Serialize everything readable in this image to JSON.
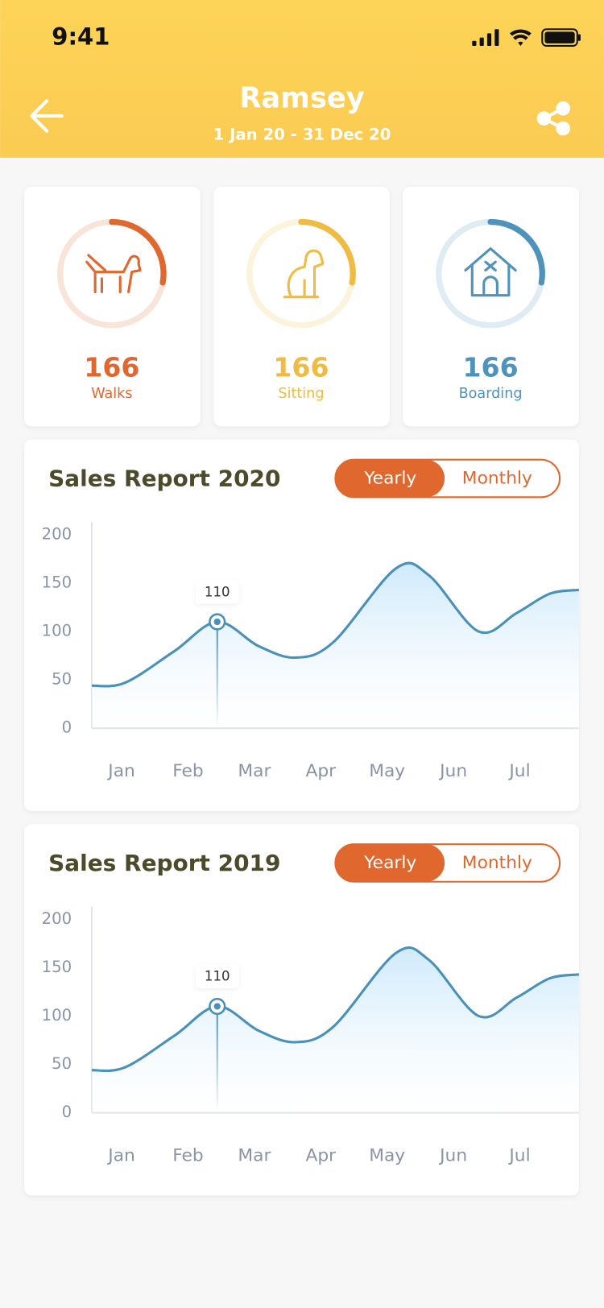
{
  "status": {
    "time": "9:41"
  },
  "header": {
    "title": "Ramsey",
    "subtitle": "1 Jan 20 - 31 Dec 20"
  },
  "stats": [
    {
      "value": 166,
      "label": "Walks",
      "color": "#e0672d"
    },
    {
      "value": 166,
      "label": "Sitting",
      "color": "#efbb42"
    },
    {
      "value": 166,
      "label": "Boarding",
      "color": "#4f93bd"
    }
  ],
  "chart_data": [
    {
      "type": "line",
      "title": "Sales Report 2020",
      "toggle": [
        "Yearly",
        "Monthly"
      ],
      "x": [
        -0.45,
        0.05,
        0.8,
        1.44,
        2.06,
        2.62,
        3.19,
        4.13,
        4.63,
        5.38,
        5.95,
        6.45,
        6.89
      ],
      "values": [
        44,
        47,
        80,
        110,
        85,
        73,
        89,
        165,
        158,
        100,
        119,
        139,
        143
      ],
      "color": "#4a90b8",
      "xlim": [
        -0.45,
        6.89
      ],
      "ylim": [
        0,
        200
      ],
      "yticks": [
        0,
        50,
        100,
        150,
        200
      ],
      "xticks": [
        {
          "value": 0,
          "label": "Jan"
        },
        {
          "value": 1,
          "label": "Feb"
        },
        {
          "value": 2,
          "label": "Mar"
        },
        {
          "value": 3,
          "label": "Apr"
        },
        {
          "value": 4,
          "label": "May"
        },
        {
          "value": 5,
          "label": "Jun"
        },
        {
          "value": 6,
          "label": "Jul"
        }
      ],
      "marker": {
        "x": 1.44,
        "y": 110
      }
    },
    {
      "type": "line",
      "title": "Sales Report 2019",
      "toggle": [
        "Yearly",
        "Monthly"
      ],
      "x": [
        -0.45,
        0.05,
        0.8,
        1.44,
        2.06,
        2.62,
        3.19,
        4.13,
        4.63,
        5.38,
        5.95,
        6.45,
        6.89
      ],
      "values": [
        44,
        47,
        80,
        110,
        85,
        73,
        89,
        165,
        158,
        100,
        119,
        139,
        143
      ],
      "color": "#4a90b8",
      "xlim": [
        -0.45,
        6.89
      ],
      "ylim": [
        0,
        200
      ],
      "yticks": [
        0,
        50,
        100,
        150,
        200
      ],
      "xticks": [
        {
          "value": 0,
          "label": "Jan"
        },
        {
          "value": 1,
          "label": "Feb"
        },
        {
          "value": 2,
          "label": "Mar"
        },
        {
          "value": 3,
          "label": "Apr"
        },
        {
          "value": 4,
          "label": "May"
        },
        {
          "value": 5,
          "label": "Jun"
        },
        {
          "value": 6,
          "label": "Jul"
        }
      ],
      "marker": {
        "x": 1.44,
        "y": 110
      }
    }
  ]
}
